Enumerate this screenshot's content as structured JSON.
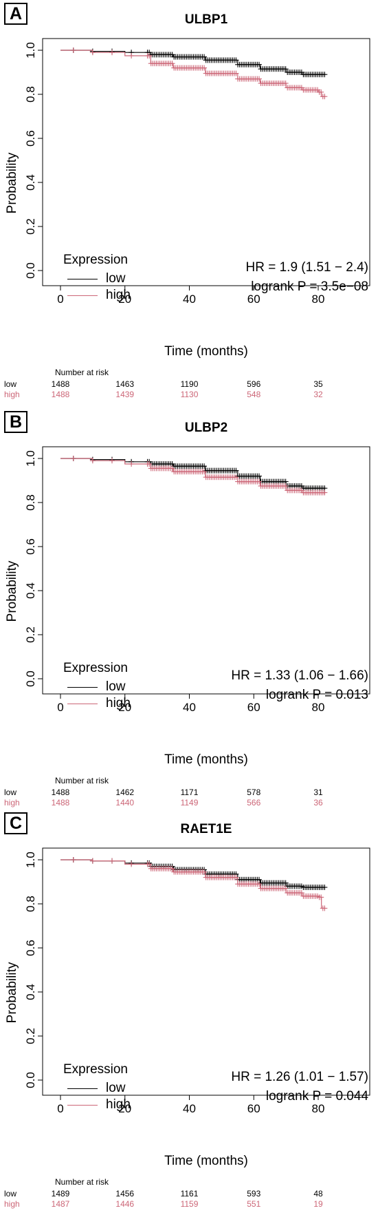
{
  "colors": {
    "low": "#000000",
    "high": "#cc6677"
  },
  "common": {
    "ylabel": "Probability",
    "xlabel": "Time (months)",
    "legend_title": "Expression",
    "risk_title": "Number at risk",
    "series_low": "low",
    "series_high": "high"
  },
  "chart_data": [
    {
      "type": "line",
      "panel_label": "A",
      "title": "ULBP1",
      "xlabel": "Time (months)",
      "ylabel": "Probability",
      "xlim": [
        0,
        82
      ],
      "ylim": [
        0,
        1
      ],
      "xticks": [
        "0",
        "20",
        "40",
        "60",
        "80"
      ],
      "yticks": [
        "0.0",
        "0.2",
        "0.4",
        "0.6",
        "0.8",
        "1.0"
      ],
      "series": [
        {
          "name": "low",
          "x": [
            0,
            10,
            20,
            28,
            35,
            45,
            55,
            62,
            70,
            75,
            82
          ],
          "y": [
            1.0,
            0.995,
            0.99,
            0.98,
            0.97,
            0.955,
            0.935,
            0.915,
            0.9,
            0.89,
            0.89
          ]
        },
        {
          "name": "high",
          "x": [
            0,
            10,
            20,
            28,
            35,
            45,
            55,
            62,
            70,
            75,
            80,
            81,
            82
          ],
          "y": [
            1.0,
            0.99,
            0.975,
            0.94,
            0.92,
            0.895,
            0.87,
            0.85,
            0.83,
            0.82,
            0.81,
            0.79,
            0.79
          ]
        }
      ],
      "hr_text": "HR = 1.9 (1.51 − 2.4)",
      "p_text": "logrank P = 3.5e−08",
      "risk_times": [
        0,
        20,
        40,
        60,
        80
      ],
      "risk_low": [
        "1488",
        "1463",
        "1190",
        "596",
        "35"
      ],
      "risk_high": [
        "1488",
        "1439",
        "1130",
        "548",
        "32"
      ]
    },
    {
      "type": "line",
      "panel_label": "B",
      "title": "ULBP2",
      "xlabel": "Time (months)",
      "ylabel": "Probability",
      "xlim": [
        0,
        82
      ],
      "ylim": [
        0,
        1
      ],
      "xticks": [
        "0",
        "20",
        "40",
        "60",
        "80"
      ],
      "yticks": [
        "0.0",
        "0.2",
        "0.4",
        "0.6",
        "0.8",
        "1.0"
      ],
      "series": [
        {
          "name": "low",
          "x": [
            0,
            10,
            20,
            28,
            35,
            45,
            55,
            62,
            70,
            75,
            82
          ],
          "y": [
            1.0,
            0.995,
            0.985,
            0.975,
            0.965,
            0.945,
            0.92,
            0.895,
            0.875,
            0.865,
            0.84
          ]
        },
        {
          "name": "high",
          "x": [
            0,
            10,
            20,
            28,
            35,
            45,
            55,
            62,
            70,
            75,
            82
          ],
          "y": [
            1.0,
            0.99,
            0.975,
            0.955,
            0.94,
            0.915,
            0.895,
            0.875,
            0.855,
            0.845,
            0.835
          ]
        }
      ],
      "hr_text": "HR = 1.33 (1.06 − 1.66)",
      "p_text": "logrank P = 0.013",
      "risk_times": [
        0,
        20,
        40,
        60,
        80
      ],
      "risk_low": [
        "1488",
        "1462",
        "1171",
        "578",
        "31"
      ],
      "risk_high": [
        "1488",
        "1440",
        "1149",
        "566",
        "36"
      ]
    },
    {
      "type": "line",
      "panel_label": "C",
      "title": "RAET1E",
      "xlabel": "Time (months)",
      "ylabel": "Probability",
      "xlim": [
        0,
        82
      ],
      "ylim": [
        0,
        1
      ],
      "xticks": [
        "0",
        "20",
        "40",
        "60",
        "80"
      ],
      "yticks": [
        "0.0",
        "0.2",
        "0.4",
        "0.6",
        "0.8",
        "1.0"
      ],
      "series": [
        {
          "name": "low",
          "x": [
            0,
            10,
            20,
            28,
            35,
            45,
            55,
            62,
            70,
            75,
            82
          ],
          "y": [
            1.0,
            0.995,
            0.985,
            0.97,
            0.955,
            0.935,
            0.91,
            0.895,
            0.88,
            0.875,
            0.87
          ]
        },
        {
          "name": "high",
          "x": [
            0,
            10,
            20,
            28,
            35,
            45,
            55,
            62,
            70,
            75,
            80,
            81,
            82
          ],
          "y": [
            1.0,
            0.995,
            0.98,
            0.96,
            0.945,
            0.92,
            0.89,
            0.87,
            0.85,
            0.835,
            0.83,
            0.78,
            0.78
          ]
        }
      ],
      "hr_text": "HR = 1.26 (1.01 − 1.57)",
      "p_text": "logrank P = 0.044",
      "risk_times": [
        0,
        20,
        40,
        60,
        80
      ],
      "risk_low": [
        "1489",
        "1456",
        "1161",
        "593",
        "48"
      ],
      "risk_high": [
        "1487",
        "1446",
        "1159",
        "551",
        "19"
      ]
    }
  ]
}
